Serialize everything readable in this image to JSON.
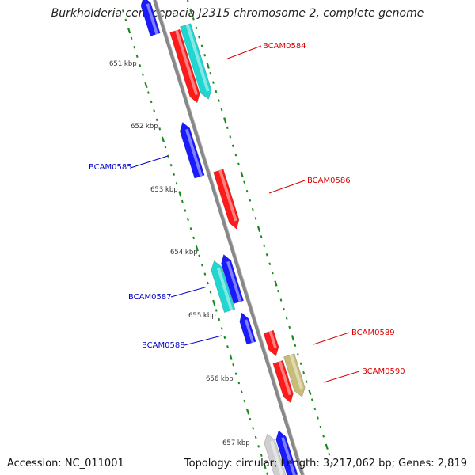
{
  "title": "Burkholderia cenocepacia J2315 chromosome 2, complete genome",
  "accession": "Accession: NC_011001",
  "summary": "Topology: circular; Length: 3,217,062 bp; Genes: 2,819",
  "colors": {
    "backbone": "#888888",
    "tick": "#1a8a1a",
    "forward_label": "#dd0000",
    "reverse_label": "#0000cc",
    "red": "#ff1a1a",
    "blue": "#1a1aff",
    "cyan": "#1fd6d0",
    "olive": "#c8bd78",
    "gray": "#cfcfcf"
  },
  "scale_labels": [
    "651 kbp",
    "652 kbp",
    "653 kbp",
    "654 kbp",
    "655 kbp",
    "656 kbp",
    "657 kbp"
  ],
  "gene_labels": [
    {
      "name": "BCAM0584",
      "side": "right"
    },
    {
      "name": "BCAM0585",
      "side": "left"
    },
    {
      "name": "BCAM0586",
      "side": "right"
    },
    {
      "name": "BCAM0587",
      "side": "left"
    },
    {
      "name": "BCAM0588",
      "side": "left"
    },
    {
      "name": "BCAM0589",
      "side": "right"
    },
    {
      "name": "BCAM0590",
      "side": "right"
    }
  ]
}
